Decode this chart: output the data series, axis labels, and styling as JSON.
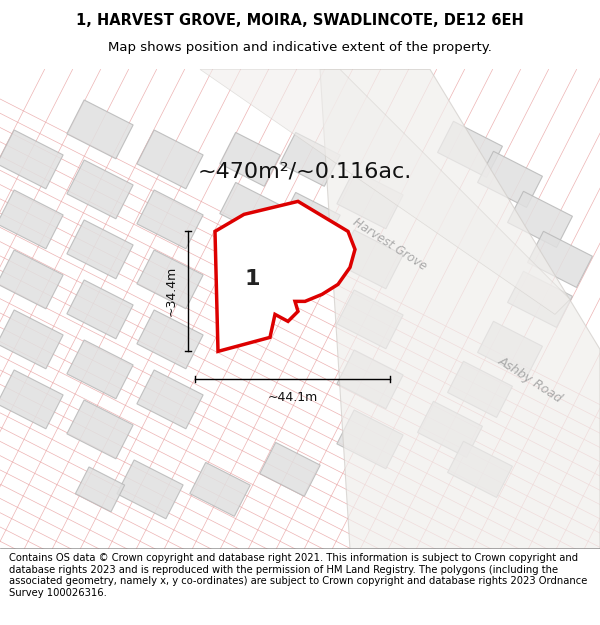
{
  "title_line1": "1, HARVEST GROVE, MOIRA, SWADLINCOTE, DE12 6EH",
  "title_line2": "Map shows position and indicative extent of the property.",
  "footer_text": "Contains OS data © Crown copyright and database right 2021. This information is subject to Crown copyright and database rights 2023 and is reproduced with the permission of HM Land Registry. The polygons (including the associated geometry, namely x, y co-ordinates) are subject to Crown copyright and database rights 2023 Ordnance Survey 100026316.",
  "area_text": "~470m²/~0.116ac.",
  "dim_width": "~44.1m",
  "dim_height": "~34.4m",
  "plot_label": "1",
  "road_label1": "Harvest Grove",
  "road_label2": "Ashby Road",
  "bg_color": "#ffffff",
  "map_bg": "#fafafa",
  "parcel_line_color": "#e8a0a0",
  "building_fill": "#e0e0e0",
  "building_edge": "#c0c0c0",
  "plot_fill": "#ffffff",
  "plot_edge": "#dd0000",
  "plot_edge_width": 2.5,
  "road_fill": "#e8e8e8",
  "road_edge": "#cccccc",
  "road_text_color": "#aaaaaa",
  "title_fontsize": 10.5,
  "subtitle_fontsize": 9.5,
  "footer_fontsize": 7.2,
  "area_fontsize": 16,
  "dim_fontsize": 9,
  "label_fontsize": 16
}
